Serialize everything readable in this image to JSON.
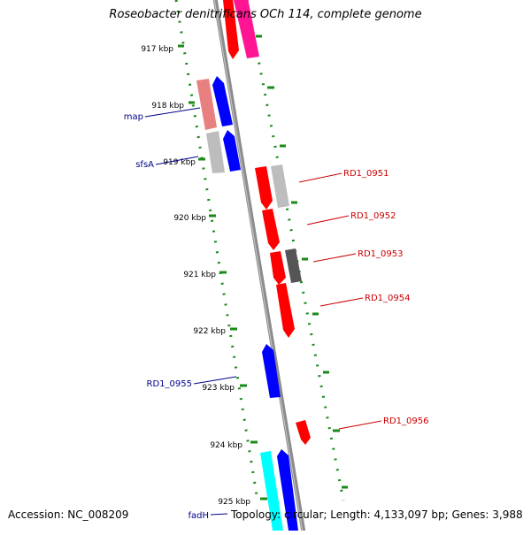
{
  "title": "Roseobacter denitrificans OCh 114, complete genome",
  "accession": "Accession: NC_008209",
  "summary": "Topology: circular; Length: 4,133,097 bp; Genes: 3,988",
  "colors": {
    "tick": "#1a8a1a",
    "backbone": "#8c8c8c",
    "forward_label": "#cc0000",
    "reverse_label": "#00008b"
  },
  "ticks": [
    "917 kbp",
    "918 kbp",
    "919 kbp",
    "920 kbp",
    "921 kbp",
    "922 kbp",
    "923 kbp",
    "924 kbp",
    "925 kbp"
  ],
  "genes": [
    {
      "name": "",
      "color": "#ff0000",
      "strand": "reverse"
    },
    {
      "name": "",
      "color": "#ff1493",
      "strand": "forward"
    },
    {
      "name": "",
      "color": "#e88080",
      "strand": "forward"
    },
    {
      "name": "map",
      "color": "#0000ff",
      "strand": "forward"
    },
    {
      "name": "",
      "color": "#bdbdbd",
      "strand": "forward"
    },
    {
      "name": "sfsA",
      "color": "#0000ff",
      "strand": "forward"
    },
    {
      "name": "RD1_0951",
      "color": "#ff0000",
      "strand": "reverse"
    },
    {
      "name": "",
      "color": "#bdbdbd",
      "strand": "forward"
    },
    {
      "name": "RD1_0952",
      "color": "#ff0000",
      "strand": "reverse"
    },
    {
      "name": "RD1_0953",
      "color": "#ff0000",
      "strand": "reverse"
    },
    {
      "name": "",
      "color": "#555555",
      "strand": "forward"
    },
    {
      "name": "RD1_0954",
      "color": "#ff0000",
      "strand": "reverse"
    },
    {
      "name": "RD1_0955",
      "color": "#0000ff",
      "strand": "forward"
    },
    {
      "name": "RD1_0956",
      "color": "#ff0000",
      "strand": "reverse"
    },
    {
      "name": "",
      "color": "#00ffff",
      "strand": "forward"
    },
    {
      "name": "fadH",
      "color": "#0000ff",
      "strand": "forward"
    }
  ]
}
